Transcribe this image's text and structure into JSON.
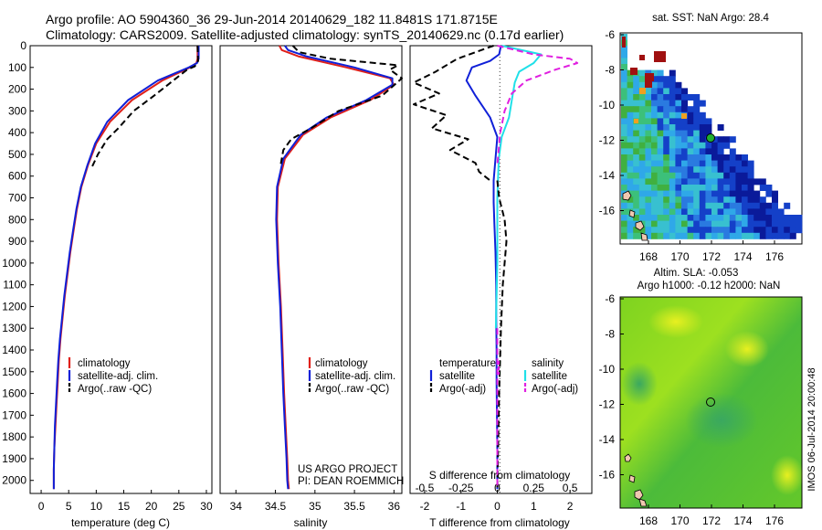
{
  "header": {
    "line1": "Argo profile: AO 5904360_36 29-Jun-2014 20140629_182 11.8481S 171.8715E",
    "line2": "Climatology: CARS2009. Satellite-adjusted climatology: synTS_20140629.nc (0.17d earlier)"
  },
  "depth_ticks": [
    0,
    100,
    200,
    300,
    400,
    500,
    600,
    700,
    800,
    900,
    1000,
    1100,
    1200,
    1300,
    1400,
    1500,
    1600,
    1700,
    1800,
    1900,
    2000
  ],
  "colors": {
    "climatology": "#e0201a",
    "satellite": "#1020d8",
    "argo": "#000000",
    "sat_salinity": "#20e0e8",
    "argo_salinity": "#e020e0"
  },
  "panels": {
    "temperature": {
      "xlabel": "temperature (deg C)",
      "xticks": [
        0,
        5,
        10,
        15,
        20,
        25,
        30
      ],
      "legend": [
        "climatology",
        "satellite-adj. clim.",
        "Argo(..raw -QC)"
      ]
    },
    "salinity": {
      "xlabel": "salinity",
      "xticks": [
        "34",
        "34.5",
        "35",
        "35.5",
        "36"
      ],
      "legend": [
        "climatology",
        "satellite-adj. clim.",
        "Argo(..raw -QC)"
      ],
      "project_line1": "US ARGO PROJECT",
      "project_line2": "PI: DEAN ROEMMICH"
    },
    "difference": {
      "xlabel": "T difference from climatology",
      "s_label": "S difference from climatology",
      "t_ticks": [
        "-2",
        "-1",
        "0",
        "1",
        "2"
      ],
      "s_ticks": [
        "-0.5",
        "-0.25",
        "0",
        "0.25",
        "0.5"
      ],
      "legend_temp_title": "temperature",
      "legend_sal_title": "salinity",
      "legend_temp": [
        "satellite",
        "Argo(-adj)"
      ],
      "legend_sal": [
        "satellite",
        "Argo(-adj)"
      ]
    }
  },
  "map_sst": {
    "title": "sat. SST: NaN Argo: 28.4",
    "yticks": [
      "-6",
      "-8",
      "-10",
      "-12",
      "-14",
      "-16"
    ],
    "xticks": [
      "168",
      "170",
      "172",
      "174",
      "176"
    ]
  },
  "map_sla": {
    "title1": "Altim. SLA: -0.053",
    "title2": "Argo h1000: -0.12 h2000: NaN",
    "yticks": [
      "-6",
      "-8",
      "-10",
      "-12",
      "-14",
      "-16"
    ],
    "xticks": [
      "168",
      "170",
      "172",
      "174",
      "176"
    ]
  },
  "stamp": "IMOS 06-Jul-2014 20:00:48",
  "chart_data": [
    {
      "type": "line",
      "name": "temperature profile",
      "xlabel": "temperature (deg C)",
      "ylabel": "",
      "xlim": [
        -2,
        31
      ],
      "ylim": [
        2060,
        0
      ],
      "series": [
        {
          "name": "climatology",
          "x": [
            28.4,
            28.4,
            28.2,
            27.0,
            22.0,
            16.5,
            12.5,
            10.0,
            8.5,
            7.3,
            6.5,
            5.9,
            5.3,
            4.8,
            4.3,
            3.9,
            3.5,
            3.2,
            3.0,
            2.8,
            2.6,
            2.4,
            2.3,
            2.3
          ],
          "y": [
            0,
            60,
            80,
            100,
            160,
            250,
            350,
            450,
            550,
            650,
            750,
            850,
            950,
            1050,
            1150,
            1250,
            1350,
            1450,
            1550,
            1650,
            1750,
            1850,
            1950,
            2040
          ]
        },
        {
          "name": "satellite-adj. clim.",
          "x": [
            28.6,
            28.6,
            28.3,
            26.8,
            21.2,
            15.8,
            12.0,
            9.8,
            8.4,
            7.2,
            6.4,
            5.8,
            5.2,
            4.7,
            4.2,
            3.8,
            3.4,
            3.1,
            2.9,
            2.7,
            2.5,
            2.4,
            2.3,
            2.3
          ],
          "y": [
            0,
            60,
            80,
            100,
            160,
            250,
            350,
            450,
            550,
            650,
            750,
            850,
            950,
            1050,
            1150,
            1250,
            1350,
            1450,
            1550,
            1650,
            1750,
            1850,
            1950,
            2040
          ]
        },
        {
          "name": "Argo(..raw -QC)",
          "x": [
            28.4,
            28.5,
            27.9,
            26.5,
            24.5,
            20.5,
            16.8,
            14.0,
            12.0,
            10.3,
            9.2
          ],
          "y": [
            0,
            70,
            95,
            110,
            150,
            230,
            300,
            380,
            430,
            500,
            560
          ]
        }
      ]
    },
    {
      "type": "line",
      "name": "salinity profile",
      "xlabel": "salinity",
      "ylabel": "",
      "xlim": [
        33.8,
        36.1
      ],
      "ylim": [
        2060,
        0
      ],
      "series": [
        {
          "name": "climatology",
          "x": [
            34.55,
            34.58,
            34.8,
            35.4,
            35.95,
            36.0,
            35.7,
            35.2,
            34.85,
            34.62,
            34.53,
            34.52,
            34.54,
            34.57,
            34.59,
            34.61,
            34.63,
            34.65,
            34.66,
            34.67
          ],
          "y": [
            0,
            20,
            50,
            100,
            150,
            180,
            250,
            330,
            410,
            520,
            650,
            800,
            1000,
            1200,
            1400,
            1600,
            1750,
            1900,
            2000,
            2040
          ]
        },
        {
          "name": "satellite-adj. clim.",
          "x": [
            34.62,
            34.66,
            34.9,
            35.5,
            35.98,
            35.98,
            35.65,
            35.15,
            34.82,
            34.6,
            34.52,
            34.51,
            34.53,
            34.56,
            34.58,
            34.6,
            34.62,
            34.64,
            34.65,
            34.66
          ],
          "y": [
            0,
            20,
            50,
            100,
            150,
            180,
            250,
            330,
            410,
            520,
            650,
            800,
            1000,
            1200,
            1400,
            1600,
            1750,
            1900,
            2000,
            2040
          ]
        },
        {
          "name": "Argo(..raw -QC)",
          "x": [
            34.72,
            34.8,
            35.2,
            36.05,
            35.95,
            36.1,
            35.85,
            35.3,
            34.95,
            34.7,
            34.6,
            34.56
          ],
          "y": [
            0,
            30,
            60,
            90,
            110,
            150,
            230,
            300,
            380,
            430,
            480,
            560
          ]
        }
      ]
    },
    {
      "type": "line",
      "name": "difference from climatology",
      "xlabel": "T difference from climatology",
      "ylabel": "",
      "xlim": [
        -2.4,
        2.6
      ],
      "ylim": [
        2060,
        0
      ],
      "series": [
        {
          "name": "temperature satellite",
          "x": [
            0.1,
            0.05,
            -0.2,
            -0.7,
            -0.85,
            -0.6,
            -0.2,
            0.0,
            -0.05,
            -0.1,
            -0.1,
            -0.08,
            -0.05,
            -0.03,
            -0.03,
            -0.02,
            -0.02,
            -0.01,
            0.0,
            0.0
          ],
          "y": [
            0,
            40,
            70,
            100,
            160,
            230,
            330,
            420,
            520,
            620,
            720,
            820,
            950,
            1100,
            1250,
            1400,
            1550,
            1700,
            1850,
            2040
          ]
        },
        {
          "name": "temperature Argo(-adj)",
          "x": [
            -0.1,
            -1.1,
            -1.7,
            -2.3,
            -1.6,
            -2.3,
            -1.4,
            -1.8,
            -0.8,
            -1.3,
            -0.6,
            -0.5,
            -0.2
          ],
          "y": [
            0,
            60,
            120,
            170,
            220,
            270,
            320,
            380,
            430,
            480,
            540,
            580,
            620
          ]
        },
        {
          "name": "salinity satellite",
          "x": [
            0.03,
            0.3,
            0.25,
            0.15,
            0.12,
            0.1,
            0.08,
            0.03,
            0.01,
            0.0,
            0.0,
            -0.01
          ],
          "y": [
            0,
            40,
            80,
            120,
            170,
            250,
            330,
            420,
            520,
            700,
            1000,
            1300
          ]
        },
        {
          "name": "salinity Argo(-adj)",
          "x": [
            0.0,
            0.25,
            0.5,
            0.55,
            0.4,
            0.2,
            0.1,
            0.05,
            0.02,
            0.0
          ],
          "y": [
            0,
            40,
            60,
            80,
            110,
            160,
            220,
            300,
            400,
            550
          ]
        }
      ]
    }
  ]
}
